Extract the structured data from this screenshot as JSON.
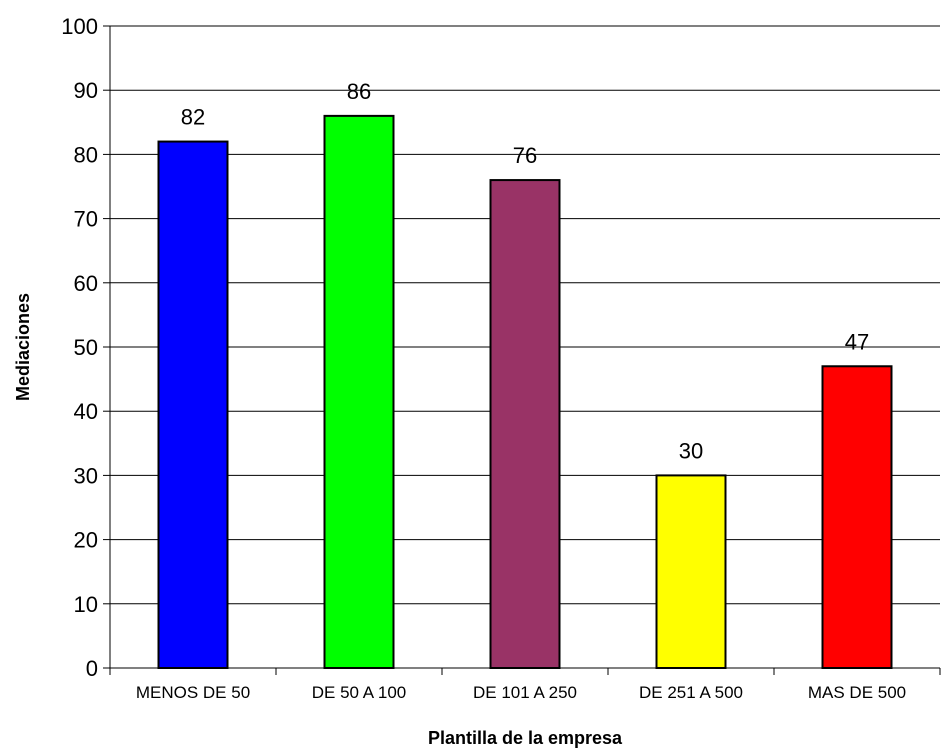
{
  "chart_data": {
    "type": "bar",
    "title": "",
    "xlabel": "Plantilla de la empresa",
    "ylabel": "Mediaciones",
    "ylim": [
      0,
      100
    ],
    "ytick_step": 10,
    "grid": "horizontal",
    "legend": "none",
    "categories": [
      "MENOS DE 50",
      "DE 50 A 100",
      "DE 101 A 250",
      "DE 251 A 500",
      "MAS DE 500"
    ],
    "values": [
      82,
      86,
      76,
      30,
      47
    ],
    "colors": [
      "#0000FF",
      "#00FF00",
      "#993366",
      "#FFFF00",
      "#FF0000"
    ]
  }
}
